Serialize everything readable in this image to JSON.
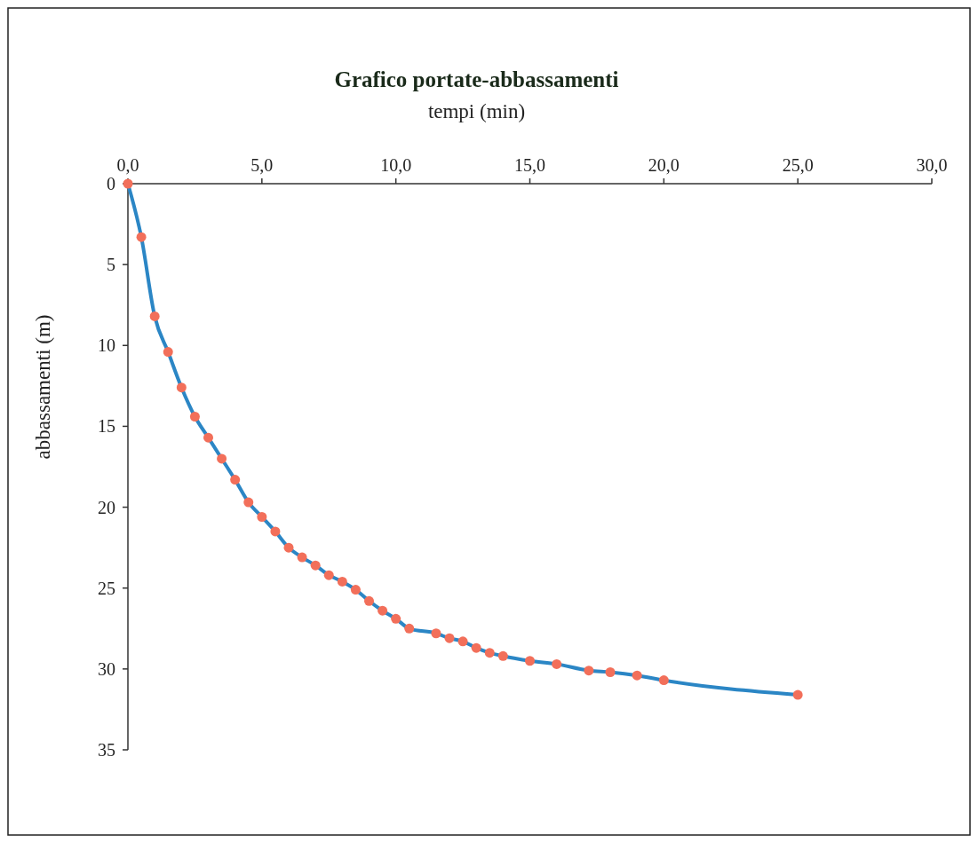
{
  "chart_data": {
    "type": "line",
    "title": "Grafico portate-abbassamenti",
    "xlabel": "tempi (min)",
    "ylabel": "abbassamenti (m)",
    "x": [
      0,
      0.5,
      1,
      1.5,
      2,
      2.5,
      3,
      3.5,
      4,
      4.5,
      5,
      5.5,
      6,
      6.5,
      7,
      7.5,
      8,
      8.5,
      9,
      9.5,
      10,
      10.5,
      11.5,
      12,
      12.5,
      13,
      13.5,
      14,
      15,
      16,
      17.2,
      18,
      19,
      20,
      25
    ],
    "series": [
      {
        "color": "#2b86c5",
        "colors": [
          "#f26f5a",
          "#f26f5a",
          "#f26f5a",
          "#f26f5a",
          "#f26f5a",
          "#f26f5a",
          "#f26f5a",
          "#f26f5a",
          "#f26f5a",
          "#f26f5a",
          "#f26f5a",
          "#f26f5a",
          "#f26f5a",
          "#f26f5a",
          "#f26f5a",
          "#f26f5a",
          "#f26f5a",
          "#f26f5a",
          "#f26f5a",
          "#f26f5a",
          "#f26f5a",
          "#f26f5a",
          "#f26f5a",
          "#f26f5a",
          "#f26f5a",
          "#f26f5a",
          "#f26f5a",
          "#f26f5a",
          "#f26f5a",
          "#f26f5a",
          "#f26f5a",
          "#f26f5a",
          "#f26f5a",
          "#f26f5a",
          "#f26f5a"
        ],
        "values": [
          0,
          3.3,
          8.2,
          10.4,
          12.6,
          14.4,
          15.7,
          17.0,
          18.3,
          19.7,
          20.6,
          21.5,
          22.5,
          23.1,
          23.6,
          24.2,
          24.6,
          25.1,
          25.8,
          26.4,
          26.9,
          27.5,
          27.8,
          28.1,
          28.3,
          28.7,
          29.0,
          29.2,
          29.5,
          29.7,
          30.1,
          30.2,
          30.4,
          30.7,
          31.6
        ]
      }
    ],
    "marker": "circle",
    "line_style": "solid",
    "grid": false,
    "xlim": [
      0,
      30
    ],
    "xticks": [
      {
        "value": 0,
        "label": "0,0"
      },
      {
        "value": 5,
        "label": "5,0"
      },
      {
        "value": 10,
        "label": "10,0"
      },
      {
        "value": 15,
        "label": "15,0"
      },
      {
        "value": 20,
        "label": "20,0"
      },
      {
        "value": 25,
        "label": "25,0"
      },
      {
        "value": 30,
        "label": "30,0"
      }
    ],
    "ylim": [
      35,
      0
    ],
    "yticks": [
      0,
      5,
      10,
      15,
      20,
      25,
      30,
      35
    ]
  }
}
